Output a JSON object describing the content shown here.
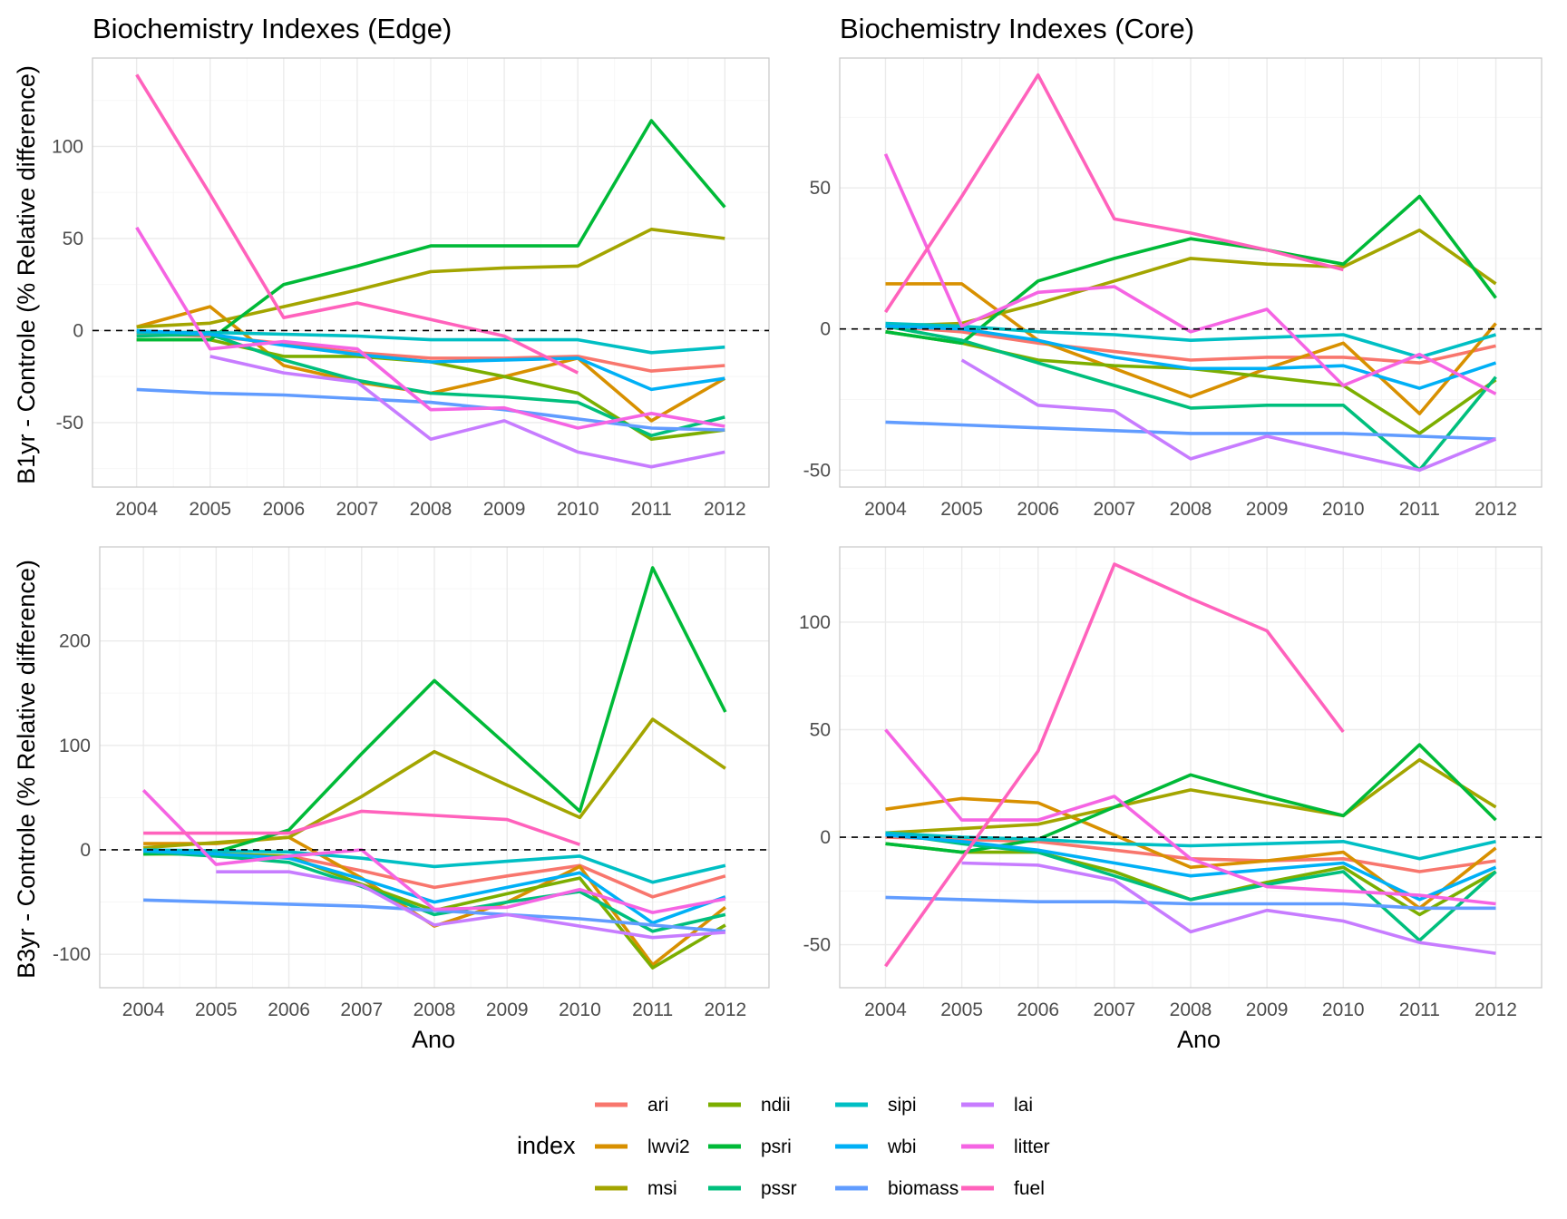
{
  "figure": {
    "xlabel": "Ano",
    "legend": {
      "title": "index",
      "position": "bottom",
      "columns": [
        [
          "ari",
          "lwvi2",
          "msi"
        ],
        [
          "ndii",
          "psri",
          "pssr"
        ],
        [
          "sipi",
          "wbi",
          "biomass"
        ],
        [
          "lai",
          "litter",
          "fuel"
        ]
      ]
    },
    "row_labels": [
      "B1yr - Controle (% Relative difference)",
      "B3yr - Controle (% Relative difference)"
    ],
    "column_titles": [
      "Biochemistry Indexes (Edge)",
      "Biochemistry Indexes (Core)"
    ]
  },
  "colors": {
    "ari": "#F8766D",
    "lwvi2": "#D89000",
    "msi": "#A3A500",
    "ndii": "#7CAE00",
    "psri": "#00BA38",
    "pssr": "#00BF7D",
    "sipi": "#00BFC4",
    "wbi": "#00B0F6",
    "biomass": "#619CFF",
    "lai": "#C77CFF",
    "litter": "#F564E3",
    "fuel": "#FF62BC"
  },
  "chart_data": [
    {
      "type": "line",
      "title": "Biochemistry Indexes (Edge)",
      "ylabel": "B1yr - Controle (% Relative difference)",
      "xlabel": "",
      "x": [
        "2004",
        "2005",
        "2006",
        "2007",
        "2008",
        "2009",
        "2010",
        "2011",
        "2012"
      ],
      "ylim": [
        -85,
        148
      ],
      "yticks": [
        -50,
        0,
        50,
        100
      ],
      "hline": 0,
      "series": [
        {
          "name": "ari",
          "values": [
            -2,
            -3,
            -7,
            -12,
            -15,
            -15,
            -14,
            -22,
            -19
          ]
        },
        {
          "name": "lwvi2",
          "values": [
            2,
            13,
            -19,
            -28,
            -34,
            -25,
            -15,
            -49,
            -26
          ]
        },
        {
          "name": "msi",
          "values": [
            2,
            4,
            13,
            22,
            32,
            34,
            35,
            55,
            50
          ]
        },
        {
          "name": "ndii",
          "values": [
            -5,
            -5,
            -14,
            -14,
            -17,
            -25,
            -34,
            -59,
            -54
          ]
        },
        {
          "name": "psri",
          "values": [
            -5,
            -5,
            25,
            35,
            46,
            46,
            46,
            114,
            67
          ]
        },
        {
          "name": "pssr",
          "values": [
            -3,
            -2,
            -16,
            -27,
            -34,
            -36,
            -39,
            -57,
            -47
          ]
        },
        {
          "name": "sipi",
          "values": [
            -1,
            -1,
            -2,
            -3,
            -5,
            -5,
            -5,
            -12,
            -9
          ]
        },
        {
          "name": "wbi",
          "values": [
            0,
            -2,
            -8,
            -13,
            -17,
            -16,
            -15,
            -32,
            -26
          ]
        },
        {
          "name": "biomass",
          "values": [
            -32,
            -34,
            -35,
            -37,
            -39,
            -43,
            -48,
            -53,
            -54
          ]
        },
        {
          "name": "lai",
          "values": [
            null,
            -14,
            -23,
            -28,
            -59,
            -49,
            -66,
            -74,
            -66
          ]
        },
        {
          "name": "litter",
          "values": [
            56,
            -10,
            -6,
            -10,
            -43,
            -42,
            -53,
            -45,
            -52
          ]
        },
        {
          "name": "fuel",
          "values": [
            139,
            74,
            7,
            15,
            6,
            -3,
            -23,
            null,
            null
          ]
        }
      ]
    },
    {
      "type": "line",
      "title": "Biochemistry Indexes (Core)",
      "ylabel": "",
      "xlabel": "",
      "x": [
        "2004",
        "2005",
        "2006",
        "2007",
        "2008",
        "2009",
        "2010",
        "2011",
        "2012"
      ],
      "ylim": [
        -56,
        96
      ],
      "yticks": [
        -50,
        0,
        50
      ],
      "hline": 0,
      "series": [
        {
          "name": "ari",
          "values": [
            1,
            -1,
            -5,
            -8,
            -11,
            -10,
            -10,
            -12,
            -6
          ]
        },
        {
          "name": "lwvi2",
          "values": [
            16,
            16,
            -4,
            -14,
            -24,
            -14,
            -5,
            -30,
            2
          ]
        },
        {
          "name": "msi",
          "values": [
            1,
            2,
            9,
            17,
            25,
            23,
            22,
            35,
            16
          ]
        },
        {
          "name": "ndii",
          "values": [
            -1,
            -5,
            -11,
            -13,
            -14,
            -17,
            -20,
            -37,
            -18
          ]
        },
        {
          "name": "psri",
          "values": [
            -1,
            -5,
            17,
            25,
            32,
            28,
            23,
            47,
            11
          ]
        },
        {
          "name": "pssr",
          "values": [
            1,
            -4,
            -12,
            -20,
            -28,
            -27,
            -27,
            -50,
            -17
          ]
        },
        {
          "name": "sipi",
          "values": [
            2,
            1,
            -1,
            -2,
            -4,
            -3,
            -2,
            -10,
            -2
          ]
        },
        {
          "name": "wbi",
          "values": [
            1,
            0,
            -4,
            -10,
            -14,
            -14,
            -13,
            -21,
            -12
          ]
        },
        {
          "name": "biomass",
          "values": [
            -33,
            -34,
            -35,
            -36,
            -37,
            -37,
            -37,
            -38,
            -39
          ]
        },
        {
          "name": "lai",
          "values": [
            null,
            -11,
            -27,
            -29,
            -46,
            -38,
            -44,
            -50,
            -39
          ]
        },
        {
          "name": "litter",
          "values": [
            62,
            1,
            13,
            15,
            -1,
            7,
            -20,
            -9,
            -23
          ]
        },
        {
          "name": "fuel",
          "values": [
            6,
            47,
            90,
            39,
            34,
            28,
            21,
            null,
            null
          ]
        }
      ]
    },
    {
      "type": "line",
      "title": "",
      "ylabel": "B3yr - Controle (% Relative difference)",
      "xlabel": "Ano",
      "x": [
        "2004",
        "2005",
        "2006",
        "2007",
        "2008",
        "2009",
        "2010",
        "2011",
        "2012"
      ],
      "ylim": [
        -132,
        290
      ],
      "yticks": [
        -100,
        0,
        100,
        200
      ],
      "hline": 0,
      "series": [
        {
          "name": "ari",
          "values": [
            0,
            -4,
            -6,
            -20,
            -36,
            -25,
            -15,
            -45,
            -25
          ]
        },
        {
          "name": "lwvi2",
          "values": [
            6,
            6,
            12,
            -27,
            -73,
            -50,
            -16,
            -110,
            -55
          ]
        },
        {
          "name": "msi",
          "values": [
            2,
            7,
            12,
            51,
            94,
            62,
            31,
            125,
            78
          ]
        },
        {
          "name": "ndii",
          "values": [
            -4,
            -4,
            -6,
            -33,
            -58,
            -42,
            -27,
            -113,
            -72
          ]
        },
        {
          "name": "psri",
          "values": [
            -4,
            -2,
            19,
            92,
            162,
            100,
            37,
            270,
            132
          ]
        },
        {
          "name": "pssr",
          "values": [
            -2,
            -6,
            -12,
            -35,
            -62,
            -50,
            -40,
            -78,
            -62
          ]
        },
        {
          "name": "sipi",
          "values": [
            0,
            -1,
            -2,
            -8,
            -16,
            -11,
            -6,
            -31,
            -15
          ]
        },
        {
          "name": "wbi",
          "values": [
            -1,
            -4,
            -8,
            -28,
            -50,
            -36,
            -22,
            -70,
            -45
          ]
        },
        {
          "name": "biomass",
          "values": [
            -48,
            -50,
            -52,
            -54,
            -58,
            -62,
            -66,
            -72,
            -78
          ]
        },
        {
          "name": "lai",
          "values": [
            null,
            -21,
            -21,
            -34,
            -72,
            -62,
            -73,
            -84,
            -79
          ]
        },
        {
          "name": "litter",
          "values": [
            57,
            -14,
            -6,
            0,
            -57,
            -55,
            -38,
            -60,
            -47
          ]
        },
        {
          "name": "fuel",
          "values": [
            16,
            16,
            16,
            37,
            33,
            29,
            5,
            null,
            null
          ]
        }
      ]
    },
    {
      "type": "line",
      "title": "",
      "ylabel": "",
      "xlabel": "Ano",
      "x": [
        "2004",
        "2005",
        "2006",
        "2007",
        "2008",
        "2009",
        "2010",
        "2011",
        "2012"
      ],
      "ylim": [
        -70,
        135
      ],
      "yticks": [
        -50,
        0,
        50,
        100
      ],
      "hline": 0,
      "series": [
        {
          "name": "ari",
          "values": [
            0,
            -1,
            -2,
            -6,
            -10,
            -11,
            -10,
            -16,
            -11
          ]
        },
        {
          "name": "lwvi2",
          "values": [
            13,
            18,
            16,
            1,
            -14,
            -11,
            -7,
            -33,
            -5
          ]
        },
        {
          "name": "msi",
          "values": [
            2,
            4,
            6,
            14,
            22,
            16,
            10,
            36,
            14
          ]
        },
        {
          "name": "ndii",
          "values": [
            -3,
            -7,
            -7,
            -16,
            -29,
            -21,
            -14,
            -36,
            -16
          ]
        },
        {
          "name": "psri",
          "values": [
            -3,
            -7,
            -1,
            14,
            29,
            19,
            10,
            43,
            8
          ]
        },
        {
          "name": "pssr",
          "values": [
            2,
            -3,
            -7,
            -18,
            -29,
            -22,
            -16,
            -48,
            -16
          ]
        },
        {
          "name": "sipi",
          "values": [
            2,
            0,
            -1,
            -3,
            -4,
            -3,
            -2,
            -10,
            -2
          ]
        },
        {
          "name": "wbi",
          "values": [
            1,
            -2,
            -6,
            -12,
            -18,
            -15,
            -12,
            -29,
            -14
          ]
        },
        {
          "name": "biomass",
          "values": [
            -28,
            -29,
            -30,
            -30,
            -31,
            -31,
            -31,
            -33,
            -33
          ]
        },
        {
          "name": "lai",
          "values": [
            null,
            -12,
            -13,
            -20,
            -44,
            -34,
            -39,
            -49,
            -54
          ]
        },
        {
          "name": "litter",
          "values": [
            50,
            8,
            8,
            19,
            -10,
            -23,
            -25,
            -27,
            -31
          ]
        },
        {
          "name": "fuel",
          "values": [
            -60,
            -10,
            40,
            127,
            111,
            96,
            49,
            null,
            null
          ]
        }
      ]
    }
  ]
}
